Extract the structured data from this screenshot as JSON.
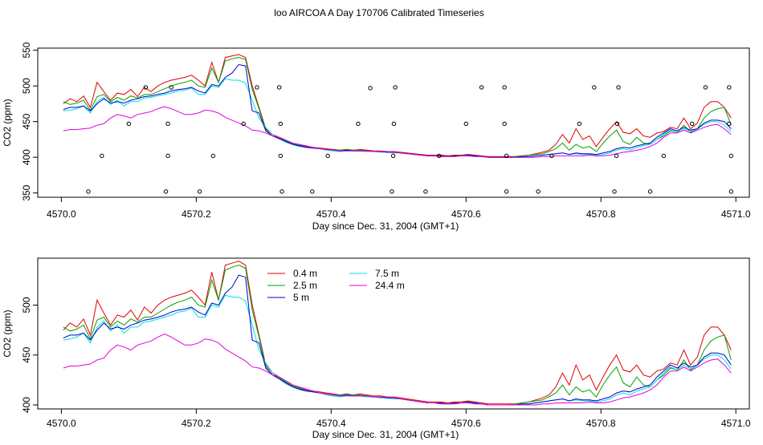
{
  "title": "loo AIRCOA A  Day 170706  Calibrated Timeseries",
  "colors": {
    "0.4 m": "#e00000",
    "2.5 m": "#00a000",
    "5 m": "#0000d0",
    "7.5 m": "#00e0e0",
    "24.4 m": "#e000e0"
  },
  "chart_data": [
    {
      "type": "line",
      "xlabel": "Day since Dec. 31, 2004 (GMT+1)",
      "ylabel": "CO2 (ppm)",
      "xlim": [
        4569.965,
        4571.02
      ],
      "ylim": [
        344,
        553
      ],
      "xticks": [
        "4570.0",
        "4570.2",
        "4570.4",
        "4570.6",
        "4570.8",
        "4571.0"
      ],
      "yticks": [
        "350",
        "400",
        "450",
        "500",
        "550"
      ],
      "legend": "none",
      "grid": false,
      "flag_points": [
        [
          4570.04,
          352
        ],
        [
          4570.06,
          402
        ],
        [
          4570.1,
          447
        ],
        [
          4570.125,
          498
        ],
        [
          4570.155,
          352
        ],
        [
          4570.158,
          402
        ],
        [
          4570.158,
          447
        ],
        [
          4570.163,
          498
        ],
        [
          4570.205,
          352
        ],
        [
          4570.225,
          402
        ],
        [
          4570.27,
          447
        ],
        [
          4570.29,
          498
        ],
        [
          4570.323,
          498
        ],
        [
          4570.325,
          447
        ],
        [
          4570.325,
          402
        ],
        [
          4570.327,
          352
        ],
        [
          4570.372,
          352
        ],
        [
          4570.395,
          402
        ],
        [
          4570.44,
          447
        ],
        [
          4570.458,
          497
        ],
        [
          4570.49,
          352
        ],
        [
          4570.492,
          402
        ],
        [
          4570.493,
          447
        ],
        [
          4570.495,
          498
        ],
        [
          4570.54,
          352
        ],
        [
          4570.56,
          402
        ],
        [
          4570.6,
          447
        ],
        [
          4570.623,
          498
        ],
        [
          4570.657,
          498
        ],
        [
          4570.657,
          447
        ],
        [
          4570.66,
          402
        ],
        [
          4570.66,
          352
        ],
        [
          4570.707,
          352
        ],
        [
          4570.727,
          402
        ],
        [
          4570.768,
          447
        ],
        [
          4570.79,
          498
        ],
        [
          4570.82,
          352
        ],
        [
          4570.823,
          402
        ],
        [
          4570.824,
          447
        ],
        [
          4570.826,
          498
        ],
        [
          4570.873,
          352
        ],
        [
          4570.893,
          402
        ],
        [
          4570.935,
          447
        ],
        [
          4570.955,
          498
        ],
        [
          4570.99,
          498
        ],
        [
          4570.99,
          447
        ],
        [
          4570.993,
          402
        ],
        [
          4570.993,
          352
        ]
      ],
      "series": [
        {
          "name": "0.4 m",
          "show_every": 1
        },
        {
          "name": "2.5 m",
          "show_every": 1
        },
        {
          "name": "5 m",
          "show_every": 1
        },
        {
          "name": "7.5 m",
          "show_every": 1
        },
        {
          "name": "24.4 m",
          "show_every": 1
        }
      ]
    },
    {
      "type": "line",
      "xlabel": "Day since Dec. 31, 2004 (GMT+1)",
      "ylabel": "CO2 (ppm)",
      "xlim": [
        4569.965,
        4571.02
      ],
      "ylim": [
        396,
        547
      ],
      "xticks": [
        "4570.0",
        "4570.2",
        "4570.4",
        "4570.6",
        "4570.8",
        "4571.0"
      ],
      "yticks": [
        "400",
        "450",
        "500"
      ],
      "legend": "top-center",
      "grid": false,
      "legend_entries": [
        {
          "label": "0.4 m"
        },
        {
          "label": "7.5 m"
        },
        {
          "label": "2.5 m"
        },
        {
          "label": "24.4 m"
        },
        {
          "label": "5 m"
        }
      ]
    }
  ],
  "series_values": {
    "x": [
      4570.003,
      4570.013,
      4570.023,
      4570.033,
      4570.043,
      4570.053,
      4570.063,
      4570.073,
      4570.083,
      4570.093,
      4570.103,
      4570.113,
      4570.123,
      4570.133,
      4570.143,
      4570.153,
      4570.163,
      4570.173,
      4570.183,
      4570.193,
      4570.203,
      4570.213,
      4570.223,
      4570.233,
      4570.243,
      4570.253,
      4570.263,
      4570.273,
      4570.283,
      4570.293,
      4570.303,
      4570.313,
      4570.323,
      4570.333,
      4570.343,
      4570.353,
      4570.363,
      4570.373,
      4570.383,
      4570.393,
      4570.403,
      4570.413,
      4570.423,
      4570.433,
      4570.443,
      4570.453,
      4570.463,
      4570.473,
      4570.483,
      4570.493,
      4570.503,
      4570.513,
      4570.523,
      4570.533,
      4570.543,
      4570.553,
      4570.563,
      4570.573,
      4570.583,
      4570.593,
      4570.603,
      4570.613,
      4570.623,
      4570.633,
      4570.643,
      4570.653,
      4570.663,
      4570.673,
      4570.683,
      4570.693,
      4570.703,
      4570.713,
      4570.723,
      4570.733,
      4570.743,
      4570.753,
      4570.763,
      4570.773,
      4570.783,
      4570.793,
      4570.803,
      4570.813,
      4570.823,
      4570.833,
      4570.843,
      4570.853,
      4570.863,
      4570.873,
      4570.883,
      4570.893,
      4570.903,
      4570.913,
      4570.923,
      4570.933,
      4570.943,
      4570.953,
      4570.963,
      4570.973,
      4570.983,
      4570.993
    ],
    "0.4 m": [
      475,
      482,
      478,
      486,
      470,
      505,
      492,
      480,
      490,
      488,
      495,
      485,
      498,
      492,
      500,
      505,
      508,
      510,
      512,
      515,
      508,
      500,
      533,
      505,
      540,
      542,
      544,
      540,
      500,
      470,
      440,
      432,
      428,
      424,
      420,
      417,
      415,
      414,
      413,
      412,
      411,
      410,
      411,
      410,
      411,
      410,
      409,
      409,
      408,
      408,
      407,
      406,
      405,
      404,
      403,
      403,
      403,
      402,
      403,
      403,
      404,
      403,
      402,
      401,
      401,
      401,
      401,
      401,
      402,
      403,
      405,
      407,
      410,
      418,
      432,
      420,
      440,
      425,
      430,
      415,
      428,
      440,
      450,
      435,
      433,
      440,
      430,
      428,
      434,
      436,
      442,
      440,
      455,
      440,
      448,
      470,
      478,
      478,
      470,
      455
    ],
    "2.5 m": [
      478,
      474,
      476,
      480,
      466,
      485,
      488,
      478,
      484,
      480,
      486,
      483,
      488,
      488,
      492,
      496,
      500,
      503,
      505,
      508,
      500,
      498,
      525,
      505,
      535,
      538,
      540,
      537,
      495,
      468,
      438,
      430,
      427,
      423,
      419,
      417,
      414,
      413,
      412,
      411,
      410,
      410,
      411,
      410,
      410,
      409,
      408,
      408,
      408,
      407,
      406,
      405,
      404,
      403,
      402,
      402,
      402,
      401,
      402,
      402,
      403,
      402,
      401,
      400,
      400,
      400,
      400,
      401,
      402,
      403,
      404,
      405,
      408,
      412,
      420,
      410,
      418,
      413,
      415,
      408,
      420,
      430,
      438,
      422,
      418,
      428,
      420,
      418,
      425,
      430,
      437,
      435,
      445,
      435,
      440,
      455,
      464,
      468,
      470,
      445
    ],
    "5 m": [
      467,
      470,
      470,
      472,
      465,
      475,
      482,
      476,
      478,
      476,
      480,
      482,
      485,
      486,
      488,
      490,
      493,
      495,
      496,
      498,
      493,
      490,
      502,
      500,
      512,
      518,
      530,
      528,
      465,
      462,
      437,
      430,
      426,
      422,
      418,
      416,
      414,
      413,
      412,
      411,
      410,
      409,
      410,
      409,
      409,
      409,
      408,
      408,
      407,
      407,
      406,
      405,
      404,
      403,
      402,
      402,
      402,
      401,
      402,
      402,
      403,
      402,
      401,
      400,
      400,
      400,
      400,
      400,
      401,
      401,
      402,
      403,
      404,
      405,
      406,
      404,
      406,
      405,
      405,
      404,
      406,
      408,
      412,
      414,
      413,
      416,
      418,
      420,
      428,
      434,
      440,
      437,
      442,
      438,
      440,
      448,
      452,
      452,
      450,
      440
    ],
    "7.5 m": [
      465,
      466,
      468,
      472,
      462,
      478,
      484,
      474,
      480,
      472,
      478,
      478,
      483,
      484,
      486,
      488,
      490,
      493,
      494,
      497,
      488,
      488,
      500,
      498,
      510,
      508,
      508,
      504,
      480,
      455,
      442,
      432,
      426,
      421,
      418,
      415,
      414,
      413,
      412,
      410,
      409,
      408,
      409,
      409,
      409,
      408,
      408,
      407,
      407,
      406,
      406,
      405,
      404,
      403,
      402,
      402,
      401,
      401,
      401,
      402,
      402,
      401,
      401,
      400,
      400,
      400,
      400,
      400,
      400,
      401,
      402,
      403,
      404,
      405,
      406,
      404,
      405,
      404,
      404,
      403,
      404,
      406,
      410,
      412,
      410,
      414,
      416,
      418,
      425,
      432,
      438,
      435,
      440,
      436,
      440,
      446,
      450,
      450,
      445,
      436
    ],
    "24.4 m": [
      437,
      439,
      439,
      440,
      441,
      445,
      447,
      455,
      460,
      458,
      455,
      460,
      462,
      464,
      468,
      471,
      468,
      464,
      460,
      460,
      462,
      466,
      465,
      462,
      456,
      452,
      448,
      444,
      438,
      437,
      434,
      430,
      428,
      424,
      420,
      418,
      416,
      414,
      412,
      411,
      410,
      409,
      409,
      409,
      409,
      409,
      408,
      408,
      408,
      407,
      406,
      405,
      404,
      403,
      402,
      402,
      401,
      401,
      401,
      402,
      402,
      401,
      401,
      400,
      400,
      400,
      400,
      400,
      400,
      400,
      400,
      401,
      401,
      402,
      402,
      402,
      402,
      402,
      403,
      402,
      402,
      403,
      405,
      407,
      408,
      410,
      412,
      415,
      420,
      428,
      434,
      434,
      438,
      434,
      438,
      442,
      445,
      446,
      440,
      432
    ]
  }
}
